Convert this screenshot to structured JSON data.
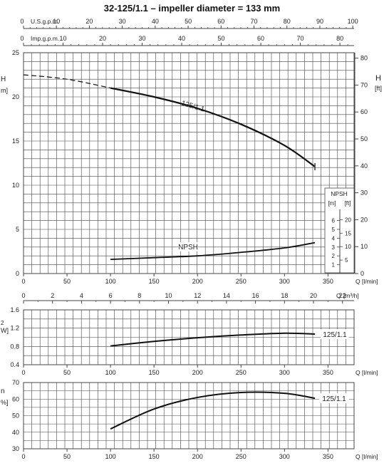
{
  "title": "32-125/1.1 – impeller diameter = 133 mm",
  "colors": {
    "grid": "#444444",
    "curve": "#111111",
    "background": "#ffffff"
  },
  "chart_data": [
    {
      "type": "line",
      "name": "head",
      "xlabel": "Q [l/min]",
      "xlim": [
        0,
        380
      ],
      "xticks": [
        0,
        50,
        100,
        150,
        200,
        250,
        300,
        350
      ],
      "ylim": [
        0,
        25
      ],
      "yticks_left": [
        0,
        5,
        10,
        15,
        20,
        25
      ],
      "left_unit_tail": "m]",
      "left_unit_head": "H",
      "right_label": "H",
      "right_unit": "[ft]",
      "yticks_right_ft": [
        0,
        10,
        20,
        30,
        40,
        50,
        60,
        70,
        80
      ],
      "top_axes": [
        {
          "label": "U.S.g.p.m.",
          "ticks": [
            0,
            10,
            20,
            30,
            40,
            50,
            60,
            70,
            80,
            90,
            100
          ],
          "factor": 3.785
        },
        {
          "label": "Imp.g.p.m.",
          "ticks": [
            0,
            10,
            20,
            30,
            40,
            50,
            60,
            70,
            80
          ],
          "factor": 4.546
        }
      ],
      "series": [
        {
          "name": "125/1.1",
          "x": [
            100,
            150,
            200,
            250,
            300,
            335
          ],
          "y": [
            21.0,
            20.0,
            18.7,
            16.9,
            14.5,
            12.1
          ]
        },
        {
          "x": [
            0,
            50,
            100
          ],
          "y": [
            22.5,
            22.0,
            21.0
          ],
          "dashed": true
        },
        {
          "name": "NPSH",
          "x": [
            100,
            150,
            200,
            250,
            300,
            335
          ],
          "y": [
            1.6,
            1.8,
            2.0,
            2.4,
            2.9,
            3.5
          ]
        }
      ],
      "npsh_inset": {
        "title": "NPSH",
        "unit_m": "[m]",
        "unit_ft": "[ft]",
        "ticks_m": [
          1,
          2,
          3,
          4,
          5,
          6
        ],
        "ticks_ft": [
          5,
          10,
          15,
          20
        ]
      },
      "bottom_axis": {
        "label": "[m³/h]",
        "ticks": [
          0,
          2,
          4,
          6,
          8,
          10,
          12,
          14,
          16,
          18,
          20,
          22
        ],
        "factor": 16.667
      }
    },
    {
      "type": "line",
      "name": "power",
      "xlabel": "Q [l/min]",
      "xlim": [
        0,
        380
      ],
      "xticks": [
        0,
        50,
        100,
        150,
        200,
        250,
        300,
        350
      ],
      "ylim": [
        0.4,
        1.6
      ],
      "yticks": [
        0.4,
        0.8,
        1.2,
        1.6
      ],
      "left_unit_head": "2",
      "left_unit_tail": "W]",
      "series": [
        {
          "name": "125/1.1",
          "x": [
            100,
            150,
            200,
            250,
            300,
            335
          ],
          "y": [
            0.81,
            0.91,
            0.99,
            1.05,
            1.09,
            1.07
          ]
        }
      ]
    },
    {
      "type": "line",
      "name": "efficiency",
      "xlabel": "Q [l/min]",
      "xlim": [
        0,
        380
      ],
      "xticks": [
        0,
        50,
        100,
        150,
        200,
        250,
        300,
        350
      ],
      "ylim": [
        30,
        70
      ],
      "yticks": [
        30,
        40,
        50,
        60,
        70
      ],
      "left_unit_head": "n",
      "left_unit_tail": "%]",
      "series": [
        {
          "name": "125/1.1",
          "x": [
            100,
            150,
            200,
            250,
            300,
            335
          ],
          "y": [
            42,
            54,
            61,
            64,
            63.5,
            60.5
          ]
        }
      ]
    }
  ]
}
